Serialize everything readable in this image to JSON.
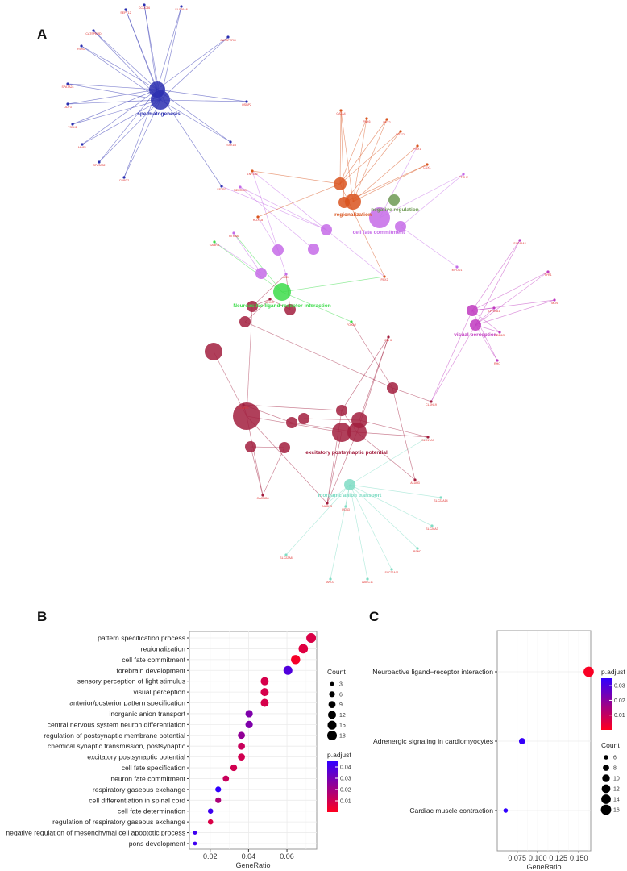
{
  "panels": {
    "a": "A",
    "b": "B",
    "c": "C"
  },
  "network": {
    "terms": [
      {
        "label": "spermatogenesis",
        "color": "#2b2fb0"
      },
      {
        "label": "regionalization",
        "color": "#d9541e"
      },
      {
        "label": "negative regulation",
        "color": "#6f9a55"
      },
      {
        "label": "cell fate commitment",
        "color": "#c56be8"
      },
      {
        "label": "Neuroactive ligand-receptor interaction",
        "color": "#3ddc4a"
      },
      {
        "label": "visual perception",
        "color": "#c03ac0"
      },
      {
        "label": "excitatory postsynaptic potential",
        "color": "#a21e3e"
      },
      {
        "label": "inorganic anion transport",
        "color": "#7fdcc4"
      }
    ],
    "genes": [
      "SEPT12",
      "CCDC36",
      "SLC26A8",
      "CATSPERG",
      "OSBP2",
      "TSSK1B",
      "SPATA32",
      "CNBD2",
      "TSSK2",
      "ODF3",
      "SPATA24",
      "MNS1",
      "CATSPERD",
      "ROS1",
      "SSTR3",
      "GATA4",
      "PAX6",
      "NKX2",
      "HOXC9",
      "PAX1",
      "CDX1",
      "ZNF536",
      "NEUROG",
      "HOXC8",
      "HTR5A",
      "GABRA",
      "LHX3",
      "PAX2",
      "FOXA2",
      "PTCH2",
      "MYOD1",
      "BSX",
      "CDH6",
      "SLC17A7",
      "ALDH3",
      "NLGN3",
      "UCN3",
      "SLC22A14",
      "SLC26A3",
      "BSND",
      "SLC22A11",
      "ABCC11",
      "ANO7",
      "SLC22A8",
      "CACNG8",
      "KCNIP2",
      "CLDN19",
      "CRYBA1",
      "PDE6G",
      "RHO",
      "SLC45A2",
      "TYR1",
      "MLN"
    ]
  },
  "chart_data": [
    {
      "type": "scatter",
      "panel": "B",
      "title": "",
      "xlabel": "GeneRatio",
      "ylabel": "",
      "xlim": [
        0.0092,
        0.0755
      ],
      "xticks": [
        "0.02",
        "0.04",
        "0.06"
      ],
      "xtick_values": [
        0.02,
        0.04,
        0.06
      ],
      "grid": true,
      "categories": [
        "pattern specification process",
        "regionalization",
        "cell fate commitment",
        "forebrain development",
        "sensory perception of light stimulus",
        "visual perception",
        "anterior/posterior pattern specification",
        "inorganic anion transport",
        "central nervous system neuron differentiation",
        "regulation of postsynaptic membrane potential",
        "chemical synaptic transmission, postsynaptic",
        "excitatory postsynaptic potential",
        "cell fate specification",
        "neuron fate commitment",
        "respiratory gaseous exchange",
        "cell differentiation in spinal cord",
        "cell fate determination",
        "regulation of respiratory gaseous exchange",
        "negative regulation of mesenchymal cell apoptotic process",
        "pons development"
      ],
      "gene_ratio": [
        0.0726,
        0.0685,
        0.0645,
        0.0605,
        0.0484,
        0.0484,
        0.0484,
        0.0403,
        0.0403,
        0.0363,
        0.0363,
        0.0363,
        0.0323,
        0.0282,
        0.0242,
        0.0242,
        0.0202,
        0.0202,
        0.0121,
        0.0121
      ],
      "count": [
        18,
        17,
        16,
        15,
        12,
        12,
        12,
        10,
        10,
        9,
        9,
        9,
        8,
        7,
        6,
        6,
        5,
        5,
        3,
        3
      ],
      "p_adjust": [
        0.008,
        0.007,
        0.002,
        0.038,
        0.009,
        0.009,
        0.009,
        0.028,
        0.028,
        0.024,
        0.012,
        0.01,
        0.01,
        0.012,
        0.045,
        0.018,
        0.042,
        0.008,
        0.042,
        0.042
      ],
      "size_legend": {
        "title": "Count",
        "values": [
          3,
          6,
          9,
          12,
          15,
          18
        ]
      },
      "color_legend": {
        "title": "p.adjust",
        "range": [
          0,
          0.045
        ],
        "ticks": [
          "0.04",
          "0.03",
          "0.02",
          "0.01"
        ],
        "tick_values": [
          0.04,
          0.03,
          0.02,
          0.01
        ]
      },
      "legend_position": "right"
    },
    {
      "type": "scatter",
      "panel": "C",
      "title": "",
      "xlabel": "GeneRatio",
      "ylabel": "",
      "xlim": [
        0.0508,
        0.1645
      ],
      "xticks": [
        "0.075",
        "0.100",
        "0.125",
        "0.150"
      ],
      "xtick_values": [
        0.075,
        0.1,
        0.125,
        0.15
      ],
      "grid": true,
      "categories": [
        "Neuroactive ligand−receptor interaction",
        "Adrenergic signaling in cardiomyocytes",
        "Cardiac muscle contraction"
      ],
      "gene_ratio": [
        0.162,
        0.081,
        0.061
      ],
      "count": [
        16,
        8,
        6
      ],
      "p_adjust": [
        0.001,
        0.034,
        0.035
      ],
      "color_legend": {
        "title": "p.adjust",
        "range": [
          0,
          0.035
        ],
        "ticks": [
          "0.03",
          "0.02",
          "0.01"
        ],
        "tick_values": [
          0.03,
          0.02,
          0.01
        ]
      },
      "size_legend": {
        "title": "Count",
        "values": [
          6,
          8,
          10,
          12,
          14,
          16
        ]
      },
      "legend_position": "right"
    }
  ]
}
